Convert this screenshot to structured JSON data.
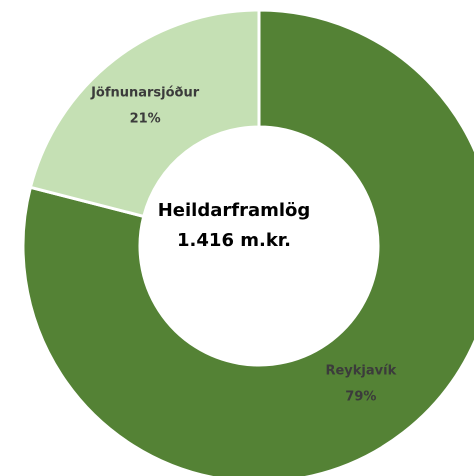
{
  "chart_data": {
    "type": "donut",
    "categories": [
      "Reykjavík",
      "Jöfnunarsjóður"
    ],
    "values": [
      79,
      21
    ],
    "value_labels": [
      "79%",
      "21%"
    ],
    "colors": [
      "#548235",
      "#c5e0b4"
    ],
    "center_text": [
      "Heildarframlög",
      "1.416 m.kr."
    ]
  }
}
